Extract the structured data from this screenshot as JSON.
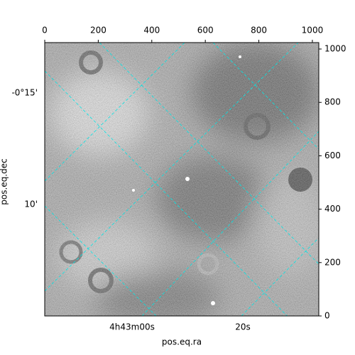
{
  "chart_data": {
    "type": "image",
    "xlabel": "pos.eq.ra",
    "ylabel": "pos.eq.dec",
    "xlim": [
      0,
      1024
    ],
    "ylim": [
      0,
      1024
    ],
    "xticks": [
      0,
      200,
      400,
      600,
      800,
      1000
    ],
    "yticks": [
      0,
      200,
      400,
      600,
      800,
      1000
    ],
    "ra_ticks": [
      "4h43m00s",
      "20s"
    ],
    "dec_ticks": [
      "-0°15'",
      "10'"
    ],
    "grid_color": "#00e5e5"
  }
}
